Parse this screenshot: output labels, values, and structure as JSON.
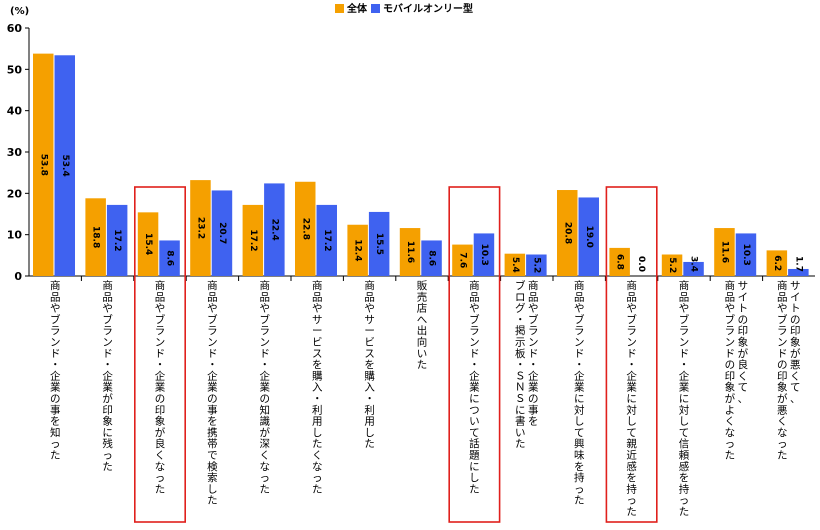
{
  "chart_data": {
    "type": "bar",
    "unit_label": "(%)",
    "ylim": [
      0,
      60
    ],
    "yticks": [
      0,
      10,
      20,
      30,
      40,
      50,
      60
    ],
    "grid": false,
    "legend_position": "top",
    "categories": [
      "商品やブランド・企業の事を知った",
      "商品やブランド・企業が印象に残った",
      "商品やブランド・企業の印象が良くなった",
      "商品やブランド・企業の事を携帯で検索した",
      "商品やブランド・企業の知識が深くなった",
      "商品やサービスを購入・利用したくなった",
      "商品やサービスを購入・利用した",
      "販売店へ出向いた",
      "商品やブランド・企業について話題にした",
      "商品やブランド・企業の事をブログ・掲示板・ＳＮＳに書いた",
      "商品やブランド・企業に対して興味を持った",
      "商品やブランド・企業に対して親近感を持った",
      "商品やブランド・企業に対して信頼感を持った",
      "サイトの印象が良くて、商品やブランドの印象がよくなった",
      "サイトの印象が悪くて、商品やブランドの印象が悪くなった"
    ],
    "category_lines": [
      [
        "商品やブランド・企業の事を知った"
      ],
      [
        "商品やブランド・企業が印象に残った"
      ],
      [
        "商品やブランド・企業の印象が良くなった"
      ],
      [
        "商品やブランド・企業の事を携帯で検索した"
      ],
      [
        "商品やブランド・企業の知識が深くなった"
      ],
      [
        "商品やサービスを購入・利用したくなった"
      ],
      [
        "商品やサービスを購入・利用した"
      ],
      [
        "販売店へ出向いた"
      ],
      [
        "商品やブランド・企業について話題にした"
      ],
      [
        "商品やブランド・企業の事を",
        "ブログ・掲示板・ＳＮＳに書いた"
      ],
      [
        "商品やブランド・企業に対して興味を持った"
      ],
      [
        "商品やブランド・企業に対して親近感を持った"
      ],
      [
        "商品やブランド・企業に対して信頼感を持った"
      ],
      [
        "サイトの印象が良くて、",
        "商品やブランドの印象がよくなった"
      ],
      [
        "サイトの印象が悪くて、",
        "商品やブランドの印象が悪くなった"
      ]
    ],
    "series": [
      {
        "name": "全体",
        "color": "#f5a000",
        "values": [
          53.8,
          18.8,
          15.4,
          23.2,
          17.2,
          22.8,
          12.4,
          11.6,
          7.6,
          5.4,
          20.8,
          6.8,
          5.2,
          11.6,
          6.2
        ],
        "labels": [
          "53.8",
          "18.8",
          "15.4",
          "23.2",
          "17.2",
          "22.8",
          "12.4",
          "11.6",
          "7.6",
          "5.4",
          "20.8",
          "6.8",
          "5.2",
          "11.6",
          "6.2"
        ]
      },
      {
        "name": "モバイルオンリー型",
        "color": "#3f62f0",
        "values": [
          53.4,
          17.2,
          8.6,
          20.7,
          22.4,
          17.2,
          15.5,
          8.6,
          10.3,
          5.2,
          19.0,
          0.0,
          3.4,
          10.3,
          1.7
        ],
        "labels": [
          "53.4",
          "17.2",
          "8.6",
          "20.7",
          "22.4",
          "17.2",
          "15.5",
          "8.6",
          "10.3",
          "5.2",
          "19.0",
          "0.0",
          "3.4",
          "10.3",
          "1.7"
        ]
      }
    ],
    "highlight_color": "#e0201c",
    "highlighted_categories": [
      2,
      8,
      11
    ]
  }
}
